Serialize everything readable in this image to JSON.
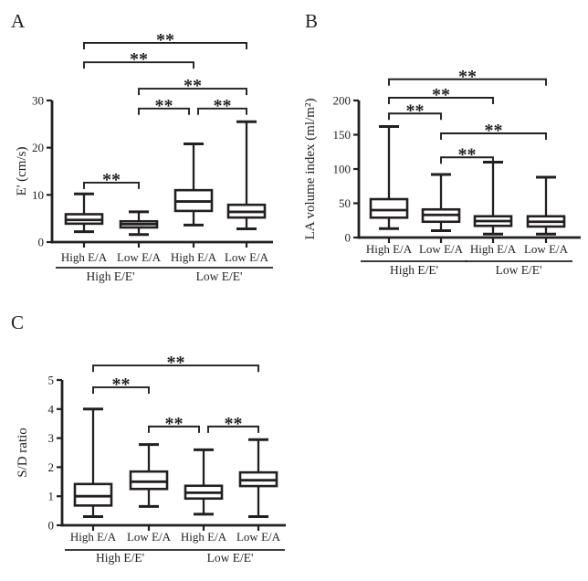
{
  "figure": {
    "background": "#ffffff",
    "ink_color": "#231f20",
    "significance_label": "**"
  },
  "chart_data": [
    {
      "id": "panel-a",
      "panel_label": "A",
      "type": "box",
      "ylabel": "E' (cm/s)",
      "ylim": [
        0,
        30
      ],
      "yticks": [
        0,
        10,
        20,
        30
      ],
      "grid": false,
      "categories": [
        "High E/A",
        "Low E/A",
        "High E/A",
        "Low E/A"
      ],
      "supergroups": [
        {
          "label": "High E/E'",
          "from": 0,
          "to": 1
        },
        {
          "label": "Low E/E'",
          "from": 2,
          "to": 3
        }
      ],
      "boxes": [
        {
          "group": "High E/E' High E/A",
          "min": 2.2,
          "q1": 3.9,
          "median": 4.7,
          "q3": 5.9,
          "max": 10.2
        },
        {
          "group": "High E/E' Low E/A",
          "min": 1.6,
          "q1": 3.1,
          "median": 3.8,
          "q3": 4.4,
          "max": 6.4
        },
        {
          "group": "Low E/E' High E/A",
          "min": 3.6,
          "q1": 6.6,
          "median": 8.6,
          "q3": 11.0,
          "max": 20.8
        },
        {
          "group": "Low E/E' Low E/A",
          "min": 2.8,
          "q1": 5.2,
          "median": 6.4,
          "q3": 7.9,
          "max": 25.5
        }
      ],
      "brackets": [
        {
          "from": 0,
          "to": 3,
          "y": 42.2,
          "label": "**"
        },
        {
          "from": 0,
          "to": 2,
          "y": 38.1,
          "label": "**"
        },
        {
          "from": 1,
          "to": 3,
          "y": 32.5,
          "label": "**"
        },
        {
          "from": 1,
          "to": 2,
          "y": 28.3,
          "label": "**"
        },
        {
          "from": 2,
          "to": 3,
          "y": 28.3,
          "label": "**"
        },
        {
          "from": 0,
          "to": 1,
          "y": 12.6,
          "label": "**"
        }
      ]
    },
    {
      "id": "panel-b",
      "panel_label": "B",
      "type": "box",
      "ylabel": "LA volume index (ml/m²)",
      "ylim": [
        0,
        200
      ],
      "yticks": [
        0,
        50,
        100,
        150,
        200
      ],
      "grid": false,
      "categories": [
        "High E/A",
        "Low E/A",
        "High E/A",
        "Low E/A"
      ],
      "supergroups": [
        {
          "label": "High E/E'",
          "from": 0,
          "to": 1
        },
        {
          "label": "Low E/E'",
          "from": 2,
          "to": 3
        }
      ],
      "boxes": [
        {
          "group": "High E/E' High E/A",
          "min": 13,
          "q1": 29,
          "median": 40,
          "q3": 56,
          "max": 162
        },
        {
          "group": "High E/E' Low E/A",
          "min": 10,
          "q1": 23,
          "median": 33,
          "q3": 41,
          "max": 92
        },
        {
          "group": "Low E/E' High E/A",
          "min": 5,
          "q1": 17,
          "median": 24,
          "q3": 31,
          "max": 110
        },
        {
          "group": "Low E/E' Low E/A",
          "min": 5,
          "q1": 16,
          "median": 23,
          "q3": 31,
          "max": 88
        }
      ],
      "brackets": [
        {
          "from": 0,
          "to": 3,
          "y": 231,
          "label": "**"
        },
        {
          "from": 0,
          "to": 2,
          "y": 204,
          "label": "**"
        },
        {
          "from": 0,
          "to": 1,
          "y": 181,
          "label": "**"
        },
        {
          "from": 1,
          "to": 3,
          "y": 152,
          "label": "**"
        },
        {
          "from": 1,
          "to": 2,
          "y": 117,
          "label": "**"
        }
      ]
    },
    {
      "id": "panel-c",
      "panel_label": "C",
      "type": "box",
      "ylabel": "S/D ratio",
      "ylim": [
        0,
        5
      ],
      "yticks": [
        0,
        1,
        2,
        3,
        4,
        5
      ],
      "grid": false,
      "categories": [
        "High E/A",
        "Low E/A",
        "High E/A",
        "Low E/A"
      ],
      "supergroups": [
        {
          "label": "High E/E'",
          "from": 0,
          "to": 1
        },
        {
          "label": "Low E/E'",
          "from": 2,
          "to": 3
        }
      ],
      "boxes": [
        {
          "group": "High E/E' High E/A",
          "min": 0.3,
          "q1": 0.68,
          "median": 1.0,
          "q3": 1.42,
          "max": 4.0
        },
        {
          "group": "High E/E' Low E/A",
          "min": 0.65,
          "q1": 1.25,
          "median": 1.5,
          "q3": 1.85,
          "max": 2.78
        },
        {
          "group": "Low E/E' High E/A",
          "min": 0.38,
          "q1": 0.92,
          "median": 1.12,
          "q3": 1.36,
          "max": 2.6
        },
        {
          "group": "Low E/E' Low E/A",
          "min": 0.3,
          "q1": 1.35,
          "median": 1.55,
          "q3": 1.82,
          "max": 2.95
        }
      ],
      "brackets": [
        {
          "from": 0,
          "to": 3,
          "y": 5.5,
          "label": "**"
        },
        {
          "from": 0,
          "to": 1,
          "y": 4.75,
          "label": "**"
        },
        {
          "from": 1,
          "to": 2,
          "y": 3.4,
          "label": "**"
        },
        {
          "from": 2,
          "to": 3,
          "y": 3.4,
          "label": "**"
        }
      ]
    }
  ]
}
